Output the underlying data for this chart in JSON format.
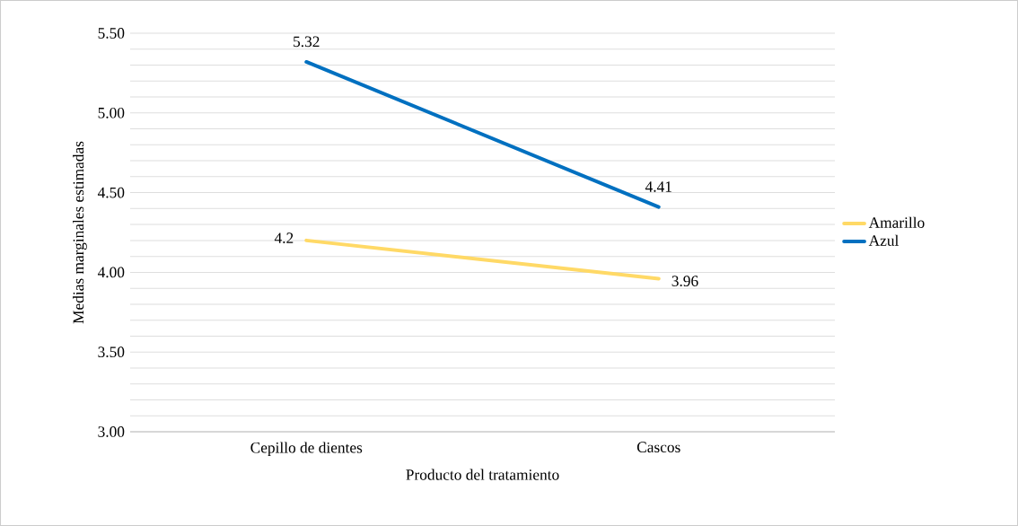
{
  "chart_data": {
    "type": "line",
    "xlabel": "Producto del tratamiento",
    "ylabel": "Medias marginales estimadas",
    "categories": [
      "Cepillo de dientes",
      "Cascos"
    ],
    "series": [
      {
        "name": "Amarillo",
        "color": "#ffd966",
        "values": [
          4.2,
          3.96
        ]
      },
      {
        "name": "Azul",
        "color": "#0070c0",
        "values": [
          5.32,
          4.41
        ]
      }
    ],
    "ylim": [
      3.0,
      5.5
    ],
    "yticks": [
      {
        "value": 3.0,
        "label": "3.00"
      },
      {
        "value": 3.1,
        "label": null
      },
      {
        "value": 3.2,
        "label": null
      },
      {
        "value": 3.3,
        "label": null
      },
      {
        "value": 3.4,
        "label": null
      },
      {
        "value": 3.5,
        "label": "3.50"
      },
      {
        "value": 3.6,
        "label": null
      },
      {
        "value": 3.7,
        "label": null
      },
      {
        "value": 3.8,
        "label": null
      },
      {
        "value": 3.9,
        "label": null
      },
      {
        "value": 4.0,
        "label": "4.00"
      },
      {
        "value": 4.1,
        "label": null
      },
      {
        "value": 4.2,
        "label": null
      },
      {
        "value": 4.3,
        "label": null
      },
      {
        "value": 4.4,
        "label": null
      },
      {
        "value": 4.5,
        "label": "4.50"
      },
      {
        "value": 4.6,
        "label": null
      },
      {
        "value": 4.7,
        "label": null
      },
      {
        "value": 4.8,
        "label": null
      },
      {
        "value": 4.9,
        "label": null
      },
      {
        "value": 5.0,
        "label": "5.00"
      },
      {
        "value": 5.1,
        "label": null
      },
      {
        "value": 5.2,
        "label": null
      },
      {
        "value": 5.3,
        "label": null
      },
      {
        "value": 5.4,
        "label": null
      },
      {
        "value": 5.5,
        "label": "5.50"
      }
    ],
    "grid": "y",
    "legend": "right",
    "data_labels": true,
    "marker": "none",
    "line_style": "solid"
  }
}
